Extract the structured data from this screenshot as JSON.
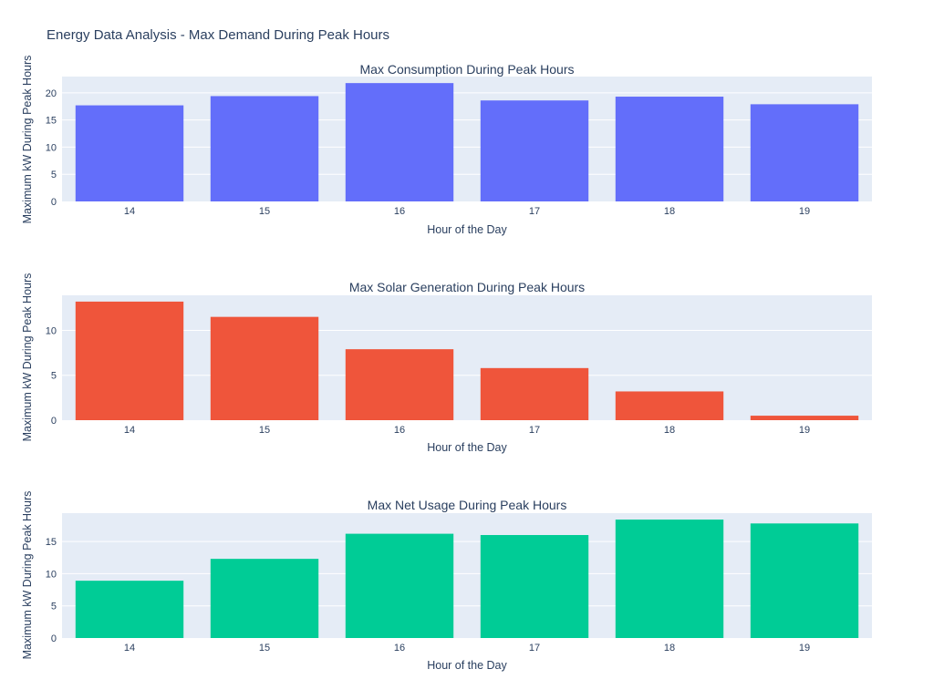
{
  "title": "Energy Data Analysis - Max Demand During Peak Hours",
  "chart_data": [
    {
      "type": "bar",
      "title": "Max Consumption During Peak Hours",
      "xlabel": "Hour of the Day",
      "ylabel": "Maximum kW During Peak Hours",
      "categories": [
        "14",
        "15",
        "16",
        "17",
        "18",
        "19"
      ],
      "values": [
        17.7,
        19.4,
        21.8,
        18.6,
        19.3,
        17.9
      ],
      "ylim": [
        0,
        23
      ],
      "yticks": [
        0,
        5,
        10,
        15,
        20
      ],
      "color": "#636efa",
      "grid": true
    },
    {
      "type": "bar",
      "title": "Max Solar Generation During Peak Hours",
      "xlabel": "Hour of the Day",
      "ylabel": "Maximum kW During Peak Hours",
      "categories": [
        "14",
        "15",
        "16",
        "17",
        "18",
        "19"
      ],
      "values": [
        13.2,
        11.5,
        7.9,
        5.8,
        3.2,
        0.5
      ],
      "ylim": [
        0,
        13.9
      ],
      "yticks": [
        0,
        5,
        10
      ],
      "color": "#ef553b",
      "grid": true
    },
    {
      "type": "bar",
      "title": "Max Net Usage During Peak Hours",
      "xlabel": "Hour of the Day",
      "ylabel": "Maximum kW During Peak Hours",
      "categories": [
        "14",
        "15",
        "16",
        "17",
        "18",
        "19"
      ],
      "values": [
        8.9,
        12.3,
        16.2,
        16.0,
        18.4,
        17.8
      ],
      "ylim": [
        0,
        19.4
      ],
      "yticks": [
        0,
        5,
        10,
        15
      ],
      "color": "#00cc96",
      "grid": true
    }
  ]
}
